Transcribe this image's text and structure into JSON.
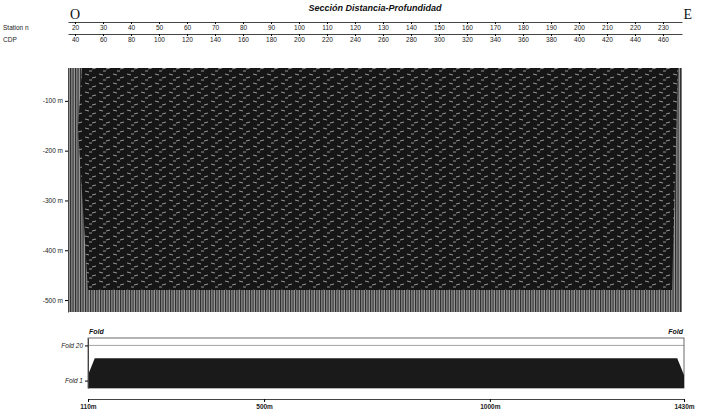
{
  "chart_data": [
    {
      "type": "seismic_section",
      "title": "Sección Distancia-Profundidad",
      "left_text": "O",
      "right_text": "E",
      "top_axes": [
        {
          "label": "Station n",
          "xlim": [
            17.5,
            236.8
          ],
          "xticks": [
            20,
            30,
            40,
            50,
            60,
            70,
            80,
            90,
            100,
            110,
            120,
            130,
            140,
            150,
            160,
            170,
            180,
            190,
            200,
            210,
            220,
            230
          ]
        },
        {
          "label": "CDP",
          "xlim": [
            35,
            473.6
          ],
          "xticks": [
            40,
            60,
            80,
            100,
            120,
            140,
            160,
            180,
            200,
            220,
            240,
            260,
            280,
            300,
            320,
            340,
            360,
            380,
            400,
            420,
            440,
            460
          ]
        }
      ],
      "ylim": [
        -524,
        -34
      ],
      "yticks": [
        {
          "value": -100,
          "label": "-100 m"
        },
        {
          "value": -200,
          "label": "-200 m"
        },
        {
          "value": -300,
          "label": "-300 m"
        },
        {
          "value": -400,
          "label": "-400 m"
        },
        {
          "value": -500,
          "label": "-500 m"
        }
      ]
    },
    {
      "type": "area",
      "labels": [
        "Fold",
        "Fold"
      ],
      "x": [
        110,
        125,
        1415,
        1430
      ],
      "values": [
        4,
        13,
        13,
        4
      ],
      "color": "#1a1a1a",
      "xlim": [
        110,
        1430
      ],
      "xticks": [
        {
          "value": 110,
          "label": "110m"
        },
        {
          "value": 500,
          "label": "500m"
        },
        {
          "value": 1000,
          "label": "1000m"
        },
        {
          "value": 1430,
          "label": "1430m"
        }
      ],
      "ylim": [
        -3,
        24
      ],
      "yticks": [
        {
          "value": 20,
          "label": "Fold 20"
        },
        {
          "value": 1,
          "label": "Fold 1"
        }
      ],
      "grid": true
    }
  ]
}
